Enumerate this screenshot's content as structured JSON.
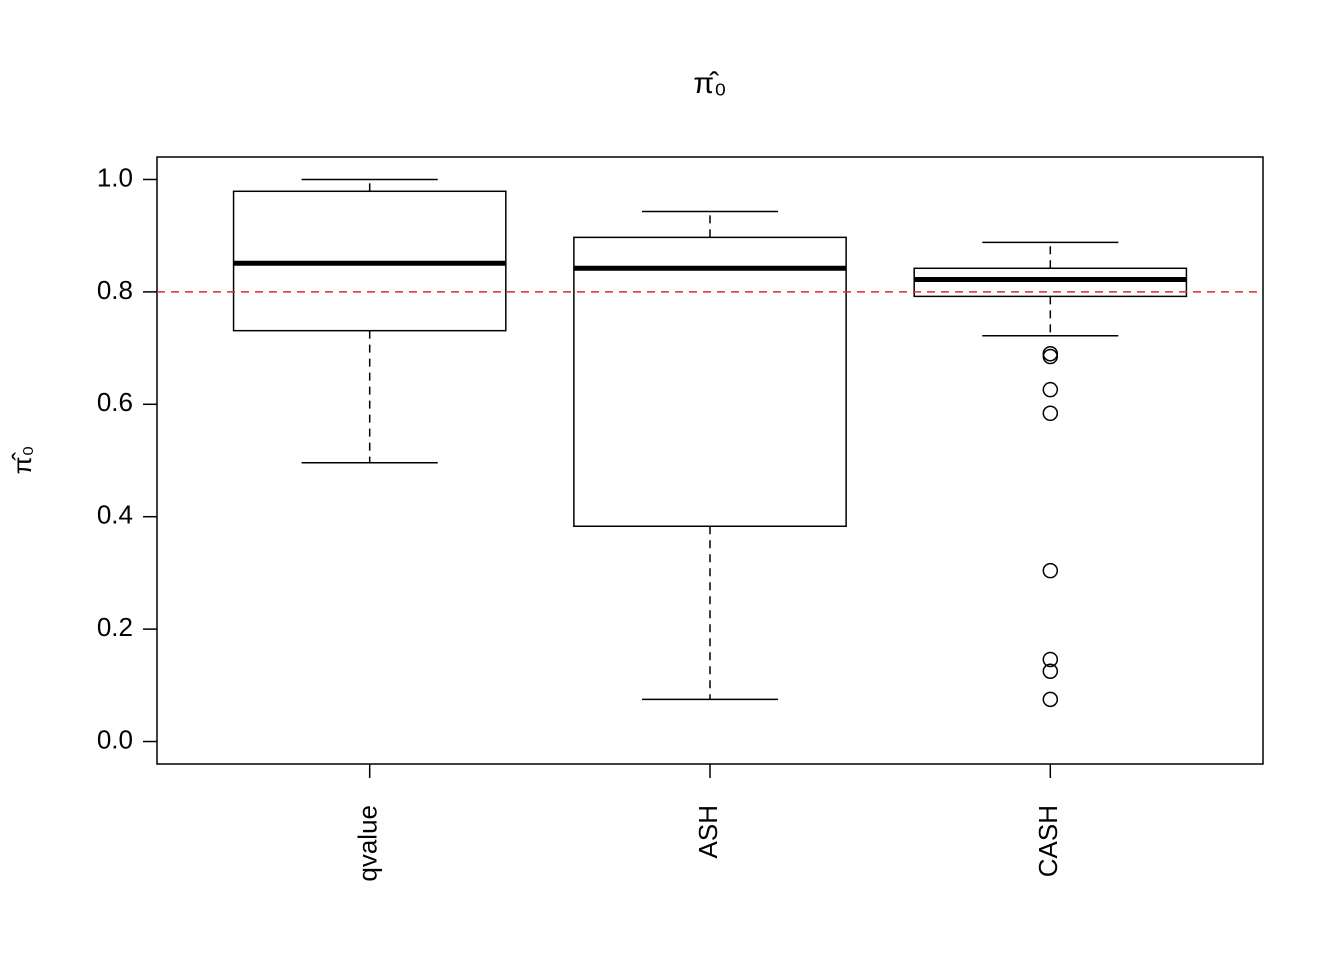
{
  "chart_data": {
    "type": "boxplot",
    "title": "π̂₀",
    "y_label": "π̂₀",
    "categories": [
      "qvalue",
      "ASH",
      "CASH"
    ],
    "boxes": [
      {
        "whisker_low": 0.496,
        "q1": 0.731,
        "median": 0.851,
        "q3": 0.979,
        "whisker_high": 1.0,
        "outliers": []
      },
      {
        "whisker_low": 0.075,
        "q1": 0.383,
        "median": 0.842,
        "q3": 0.897,
        "whisker_high": 0.943,
        "outliers": []
      },
      {
        "whisker_low": 0.722,
        "q1": 0.792,
        "median": 0.822,
        "q3": 0.842,
        "whisker_high": 0.888,
        "outliers": [
          0.69,
          0.685,
          0.626,
          0.584,
          0.304,
          0.146,
          0.125,
          0.075
        ]
      }
    ],
    "hline": 0.8,
    "hline_color": "#df2a2a",
    "color": "#000000",
    "ylim": [
      -0.04,
      1.04
    ],
    "yticks": [
      {
        "value": 0,
        "label": "0.0"
      },
      0.2,
      0.4,
      0.6,
      0.8,
      {
        "value": 1,
        "label": "1.0"
      }
    ]
  }
}
